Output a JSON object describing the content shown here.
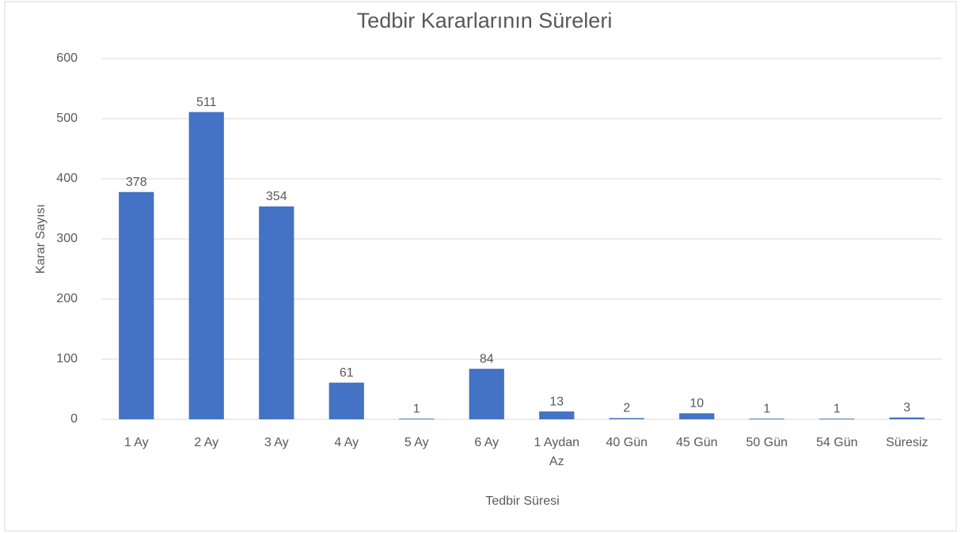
{
  "chart_data": {
    "type": "bar",
    "title": "Tedbir Kararlarının Süreleri",
    "x_label": "Tedbir Süresi",
    "y_label": "Karar Sayısı",
    "categories": [
      "1 Ay",
      "2 Ay",
      "3 Ay",
      "4 Ay",
      "5 Ay",
      "6 Ay",
      "1 Aydan Az",
      "40 Gün",
      "45 Gün",
      "50 Gün",
      "54 Gün",
      "Süresiz"
    ],
    "values": [
      378,
      511,
      354,
      61,
      1,
      84,
      13,
      2,
      10,
      1,
      1,
      3
    ],
    "color": "#4472c4",
    "ylim": [
      0,
      600
    ],
    "yticks": [
      0,
      100,
      200,
      300,
      400,
      500,
      600
    ],
    "grid": true
  }
}
